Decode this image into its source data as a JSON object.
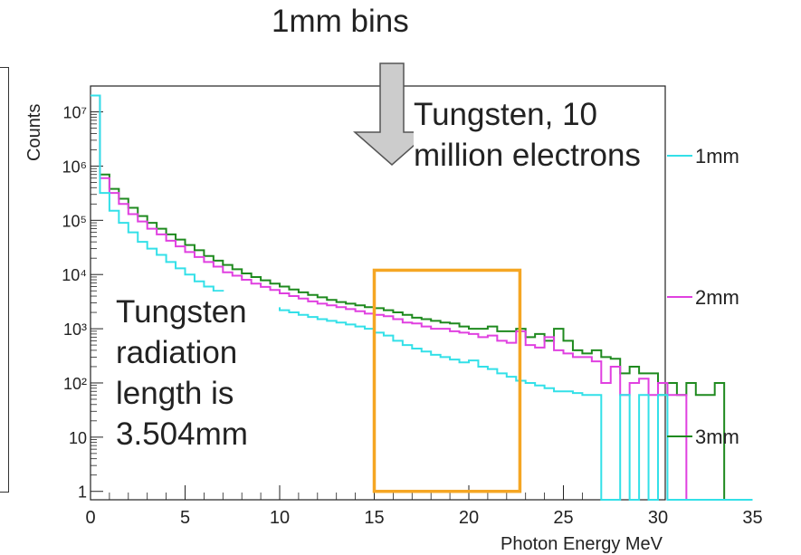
{
  "slide": {
    "heading": "1mm bins",
    "note_top_right": "Tungsten, 10 million electrons",
    "note_left": "Tungsten radiation length is 3.504mm"
  },
  "chart_data": {
    "type": "line",
    "step": true,
    "title": "",
    "xlabel": "Photon Energy MeV",
    "ylabel": "Counts",
    "xlim": [
      0,
      35
    ],
    "ylim": [
      0.7,
      30000000
    ],
    "y_scale": "log",
    "x_ticks": [
      "0",
      "5",
      "10",
      "15",
      "20",
      "25",
      "30",
      "35"
    ],
    "y_ticks": [
      {
        "value": 1,
        "label": "1"
      },
      {
        "value": 10,
        "label": "10"
      },
      {
        "value": 100,
        "label": "10²"
      },
      {
        "value": 1000,
        "label": "10³"
      },
      {
        "value": 10000,
        "label": "10⁴"
      },
      {
        "value": 100000,
        "label": "10⁵"
      },
      {
        "value": 1000000,
        "label": "10⁶"
      },
      {
        "value": 10000000,
        "label": "10⁷"
      }
    ],
    "bin_width": 0.5,
    "bin_start": 0,
    "legend_position": "right",
    "highlight_box": {
      "x": [
        15,
        22.7
      ],
      "y": [
        1,
        12000
      ],
      "color": "#f5a623"
    },
    "series": [
      {
        "name": "1mm",
        "color": "#33e0e8",
        "values": [
          20000000,
          320000,
          150000,
          90000,
          60000,
          40000,
          30000,
          23000,
          17000,
          13000,
          10000,
          7500,
          6000,
          5000,
          4300,
          3700,
          3300,
          2900,
          2600,
          2400,
          2200,
          2000,
          1800,
          1650,
          1500,
          1400,
          1300,
          1200,
          1100,
          1000,
          850,
          750,
          600,
          500,
          430,
          380,
          330,
          300,
          270,
          240,
          260,
          200,
          180,
          150,
          130,
          110,
          100,
          90,
          80,
          70,
          70,
          65,
          60,
          60,
          0,
          0,
          60,
          0,
          60,
          0,
          60,
          0,
          0,
          0,
          0,
          0,
          0,
          0,
          0,
          0
        ]
      },
      {
        "name": "2mm",
        "color": "#e040e0",
        "values": [
          20000000,
          600000,
          320000,
          200000,
          130000,
          95000,
          70000,
          55000,
          42000,
          33000,
          26000,
          21000,
          17000,
          14000,
          11000,
          9500,
          8000,
          6800,
          5900,
          5200,
          4500,
          4000,
          3600,
          3200,
          2900,
          2700,
          2500,
          2300,
          2100,
          1900,
          1800,
          1700,
          1500,
          1300,
          1250,
          1100,
          1000,
          1000,
          900,
          850,
          800,
          700,
          750,
          600,
          550,
          900,
          500,
          450,
          700,
          400,
          350,
          300,
          300,
          250,
          100,
          200,
          60,
          100,
          120,
          60,
          100,
          60,
          60,
          0,
          0,
          0,
          0,
          0,
          0,
          0
        ]
      },
      {
        "name": "3mm",
        "color": "#1f8a1f",
        "values": [
          20000000,
          700000,
          380000,
          250000,
          170000,
          120000,
          90000,
          70000,
          55000,
          44000,
          35000,
          28000,
          22000,
          18000,
          15000,
          12500,
          10500,
          9000,
          7800,
          6800,
          6000,
          5300,
          4700,
          4200,
          3800,
          3400,
          3100,
          2900,
          2700,
          2500,
          2400,
          2200,
          2000,
          1800,
          1600,
          1500,
          1400,
          1300,
          1250,
          1100,
          1000,
          1000,
          1100,
          900,
          900,
          1000,
          700,
          800,
          600,
          1000,
          600,
          400,
          350,
          400,
          300,
          280,
          150,
          200,
          150,
          150,
          60,
          100,
          60,
          100,
          60,
          60,
          100,
          0,
          0,
          0
        ]
      }
    ]
  }
}
